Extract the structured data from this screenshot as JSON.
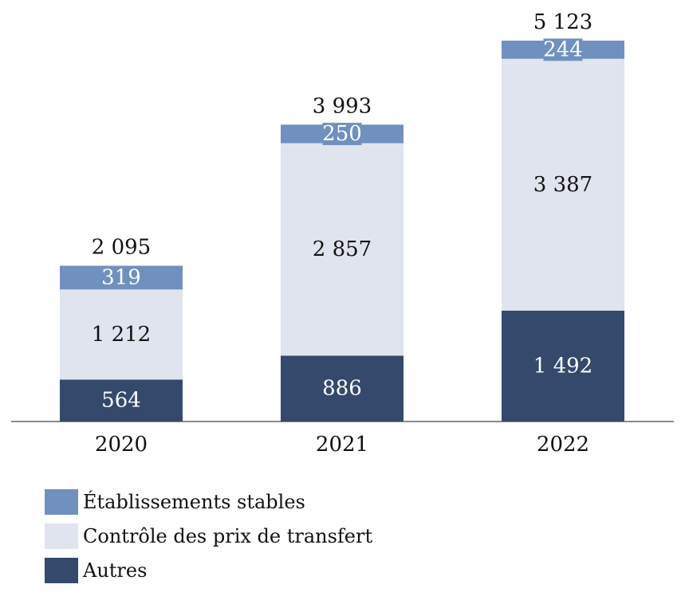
{
  "chart_data": {
    "type": "bar",
    "stacked": true,
    "categories": [
      "2020",
      "2021",
      "2022"
    ],
    "series": [
      {
        "name": "Autres",
        "values": [
          564,
          886,
          1492
        ],
        "color": "#34496b",
        "label_color": "#ffffff"
      },
      {
        "name": "Contrôle des prix de transfert",
        "values": [
          1212,
          2857,
          3387
        ],
        "color": "#dfe4ee",
        "label_color": "#111111"
      },
      {
        "name": "Établissements stables",
        "values": [
          319,
          250,
          244
        ],
        "color": "#7090bf",
        "label_color": "#ffffff"
      }
    ],
    "value_labels": [
      [
        "564",
        "886",
        "1 492"
      ],
      [
        "1 212",
        "2 857",
        "3 387"
      ],
      [
        "319",
        "250",
        "244"
      ]
    ],
    "totals": [
      "2 095",
      "3 993",
      "5 123"
    ],
    "title": "",
    "xlabel": "",
    "ylabel": "",
    "ylim": [
      0,
      5123
    ],
    "grid": false,
    "legend": {
      "placement": "bottom-left",
      "order": [
        2,
        1,
        0
      ],
      "entries": [
        "Établissements stables",
        "Contrôle des prix de transfert",
        "Autres"
      ]
    }
  }
}
